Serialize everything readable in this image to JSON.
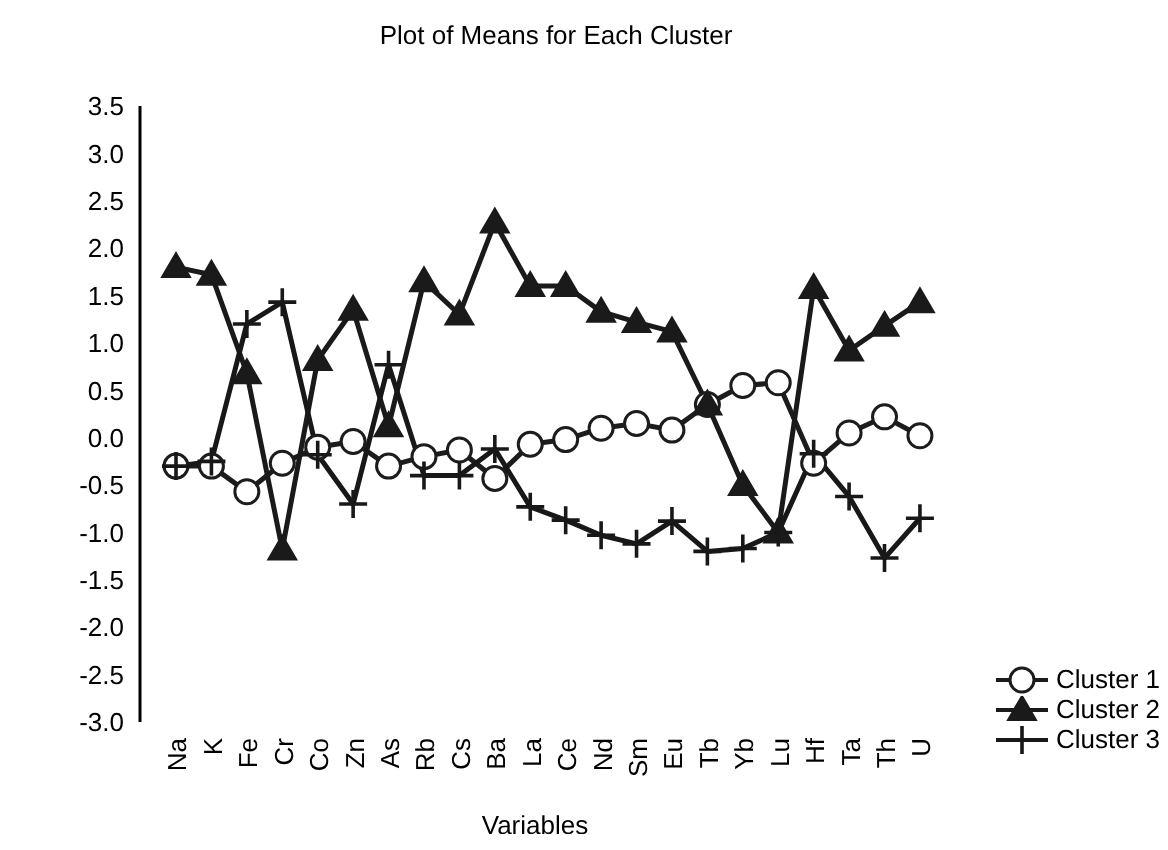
{
  "chart_data": {
    "type": "line",
    "title": "Plot of Means for Each Cluster",
    "xlabel": "Variables",
    "categories": [
      "Na",
      "K",
      "Fe",
      "Cr",
      "Co",
      "Zn",
      "As",
      "Rb",
      "Cs",
      "Ba",
      "La",
      "Ce",
      "Nd",
      "Sm",
      "Eu",
      "Tb",
      "Yb",
      "Lu",
      "Hf",
      "Ta",
      "Th",
      "U"
    ],
    "series": [
      {
        "name": "Cluster 1",
        "color": "#1c1c1c",
        "marker": "circle",
        "values": [
          -0.3,
          -0.3,
          -0.57,
          -0.27,
          -0.1,
          -0.04,
          -0.3,
          -0.2,
          -0.13,
          -0.43,
          -0.07,
          -0.02,
          0.1,
          0.15,
          0.08,
          0.35,
          0.55,
          0.58,
          -0.27,
          0.05,
          0.22,
          0.02
        ]
      },
      {
        "name": "Cluster 2",
        "color": "#1a1a1a",
        "marker": "triangle",
        "values": [
          1.8,
          1.72,
          0.68,
          -1.18,
          0.82,
          1.35,
          0.12,
          1.65,
          1.3,
          2.27,
          1.6,
          1.6,
          1.33,
          1.22,
          1.12,
          0.35,
          -0.5,
          -1.0,
          1.58,
          0.92,
          1.18,
          1.43
        ]
      },
      {
        "name": "Cluster 3",
        "color": "#181818",
        "marker": "cross",
        "values": [
          -0.3,
          -0.25,
          1.2,
          1.43,
          -0.18,
          -0.7,
          0.77,
          -0.4,
          -0.4,
          -0.12,
          -0.73,
          -0.87,
          -1.03,
          -1.12,
          -0.88,
          -1.2,
          -1.17,
          -1.0,
          -0.17,
          -0.62,
          -1.27,
          -0.85
        ]
      }
    ],
    "ylim": [
      -3,
      3.5
    ],
    "yticks": [
      {
        "value": -3,
        "label": "-3.0"
      },
      {
        "value": -2.5,
        "label": "-2.5"
      },
      {
        "value": -2,
        "label": "-2.0"
      },
      {
        "value": -1.5,
        "label": "-1.5"
      },
      {
        "value": -1,
        "label": "-1.0"
      },
      {
        "value": -0.5,
        "label": "-0.5"
      },
      {
        "value": 0,
        "label": "0.0"
      },
      {
        "value": 0.5,
        "label": "0.5"
      },
      {
        "value": 1,
        "label": "1.0"
      },
      {
        "value": 1.5,
        "label": "1.5"
      },
      {
        "value": 2,
        "label": "2.0"
      },
      {
        "value": 2.5,
        "label": "2.5"
      },
      {
        "value": 3,
        "label": "3.0"
      },
      {
        "value": 3.5,
        "label": "3.5"
      }
    ],
    "grid": false,
    "legend": "bottom right"
  }
}
